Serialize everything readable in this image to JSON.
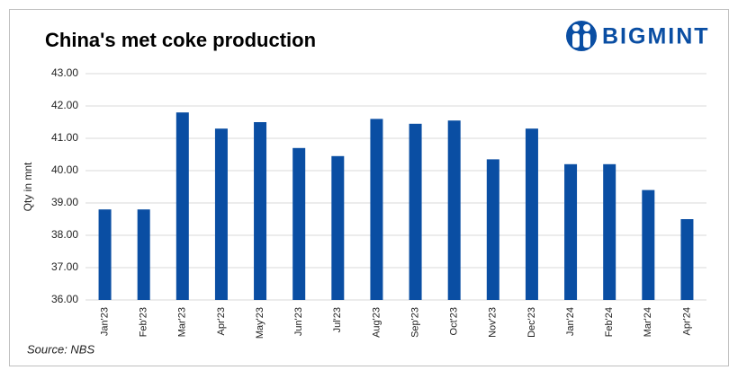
{
  "chart_data": {
    "type": "bar",
    "title": "China's met coke production",
    "logo": "BIGMINT",
    "y_label": "Qty in mnt",
    "source": "Source: NBS",
    "categories": [
      "Jan'23",
      "Feb'23",
      "Mar'23",
      "Apr'23",
      "May'23",
      "Jun'23",
      "Jul'23",
      "Aug'23",
      "Sep'23",
      "Oct'23",
      "Nov'23",
      "Dec'23",
      "Jan'24",
      "Feb'24",
      "Mar'24",
      "Apr'24"
    ],
    "values": [
      38.8,
      38.8,
      41.8,
      41.3,
      41.5,
      40.7,
      40.45,
      41.6,
      41.45,
      41.55,
      40.35,
      41.3,
      40.2,
      40.2,
      39.4,
      38.5
    ],
    "color": "#0a4ea3",
    "ylim": [
      36,
      43
    ],
    "yticks": [
      {
        "value": 36,
        "label": "36.00"
      },
      {
        "value": 37,
        "label": "37.00"
      },
      {
        "value": 38,
        "label": "38.00"
      },
      {
        "value": 39,
        "label": "39.00"
      },
      {
        "value": 40,
        "label": "40.00"
      },
      {
        "value": 41,
        "label": "41.00"
      },
      {
        "value": 42,
        "label": "42.00"
      },
      {
        "value": 43,
        "label": "43.00"
      }
    ],
    "grid": true
  }
}
